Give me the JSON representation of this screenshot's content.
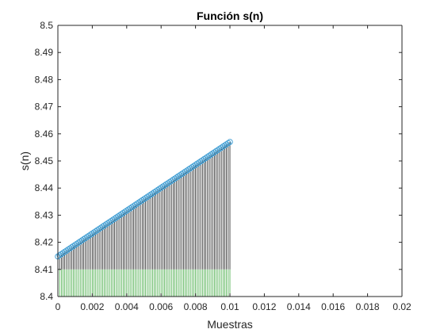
{
  "chart_data": {
    "type": "stem",
    "title": "Función s(n)",
    "xlabel": "Muestras",
    "ylabel": "s(n)",
    "xlim": [
      0,
      0.02
    ],
    "ylim": [
      8.4,
      8.5
    ],
    "xticks": [
      "0",
      "0.002",
      "0.004",
      "0.006",
      "0.008",
      "0.01",
      "0.012",
      "0.014",
      "0.016",
      "0.018",
      "0.02"
    ],
    "yticks": [
      "8.4",
      "8.41",
      "8.42",
      "8.43",
      "8.44",
      "8.45",
      "8.46",
      "8.47",
      "8.48",
      "8.49",
      "8.5"
    ],
    "grid": false,
    "series": [
      {
        "sample_count": 101,
        "x_start": 0,
        "x_end": 0.01,
        "y_start": 8.4148,
        "y_end": 8.457,
        "stem_color_low": "#2ca02c",
        "stem_color_high": "#000000",
        "marker_color": "#4aa3d6",
        "marker": "circle"
      }
    ]
  },
  "colors": {
    "background": "#ffffff",
    "axes": "#262626"
  }
}
